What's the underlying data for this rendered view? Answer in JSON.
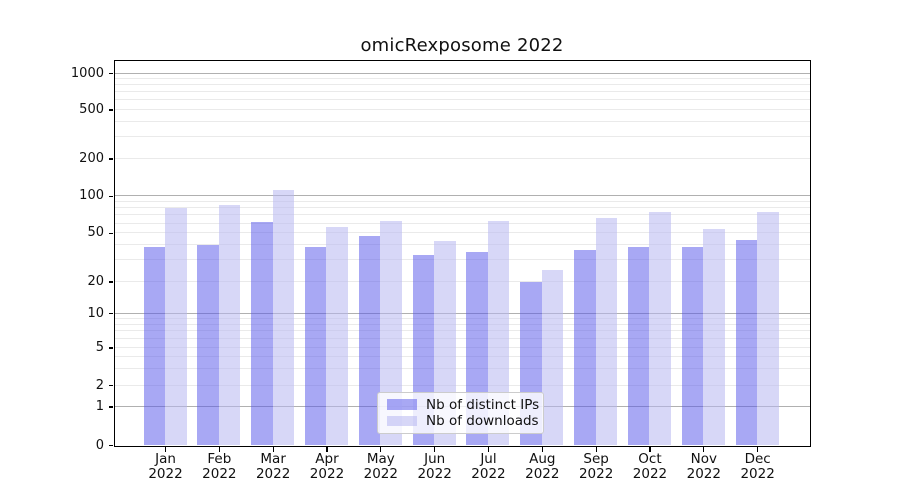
{
  "title": "omicRexposome 2022",
  "chart_data": {
    "type": "bar",
    "title": "omicRexposome 2022",
    "categories": [
      "Jan",
      "Feb",
      "Mar",
      "Apr",
      "May",
      "Jun",
      "Jul",
      "Aug",
      "Sep",
      "Oct",
      "Nov",
      "Dec"
    ],
    "category_year": "2022",
    "series": [
      {
        "name": "Nb of distinct IPs",
        "color": "#a8a8f4",
        "fill": "rgba(82,82,233,0.5)",
        "values": [
          38,
          40,
          61,
          38,
          47,
          33,
          35,
          20,
          36,
          38,
          38,
          44
        ]
      },
      {
        "name": "Nb of downloads",
        "color": "#d8d8f7",
        "fill": "rgba(183,183,240,0.55)",
        "values": [
          80,
          85,
          112,
          56,
          63,
          43,
          63,
          25,
          66,
          74,
          54,
          74
        ]
      }
    ],
    "xlabel": "",
    "ylabel": "",
    "y_ticks": [
      0,
      1,
      2,
      5,
      10,
      20,
      50,
      100,
      200,
      500,
      1000
    ],
    "y_scale": "log-like (linear segment below 1, includes 0)",
    "ylim": [
      0,
      1270
    ],
    "grid": true,
    "legend_position": "lower center"
  },
  "colors": {
    "bar_distinct_ips": "#a8a8f4",
    "bar_downloads": "#d8d8f7",
    "grid_major": "#b0b0b0",
    "grid_minor": "#eaeaea",
    "axis": "#000000",
    "legend_border": "#cccccc",
    "legend_bg": "rgba(255,255,255,0.8)",
    "text": "#111111"
  }
}
